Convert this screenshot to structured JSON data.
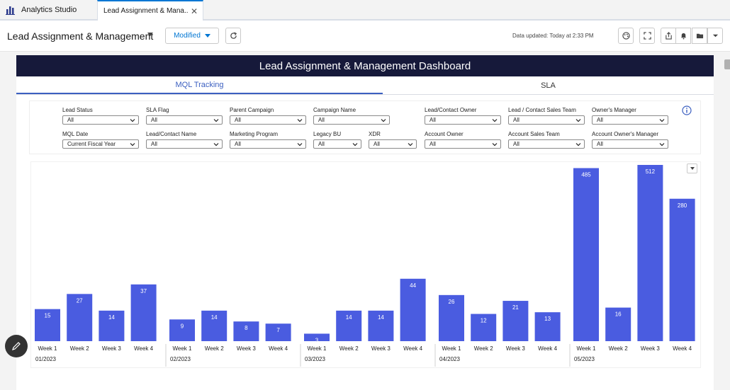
{
  "tabs": {
    "app_name": "Analytics Studio",
    "document_tab": "Lead Assignment & Mana...",
    "close_symbol": "✕"
  },
  "header": {
    "title": "Lead Assignment & Management",
    "modified_label": "Modified",
    "data_updated": "Data updated: Today at 2:33 PM"
  },
  "dashboard": {
    "title": "Lead Assignment & Management Dashboard",
    "subtabs": [
      "MQL Tracking",
      "SLA"
    ],
    "accent_color": "#3b5fc0",
    "title_bar_color": "#16193a"
  },
  "filters": [
    {
      "label": "Lead Status",
      "value": "All"
    },
    {
      "label": "SLA Flag",
      "value": "All"
    },
    {
      "label": "Parent Campaign",
      "value": "All"
    },
    {
      "label": "Campaign Name",
      "value": "All"
    },
    {
      "label": "Lead/Contact Owner",
      "value": "All"
    },
    {
      "label": "Lead / Contact Sales Team",
      "value": "All"
    },
    {
      "label": "Owner's Manager",
      "value": "All"
    },
    {
      "label": "MQL Date",
      "value": "Current Fiscal Year"
    },
    {
      "label": "Lead/Contact Name",
      "value": "All"
    },
    {
      "label": "Marketing Program",
      "value": "All"
    },
    {
      "label": "Legacy BU",
      "value": "All"
    },
    {
      "label": "XDR",
      "value": "All"
    },
    {
      "label": "Account Owner",
      "value": "All"
    },
    {
      "label": "Account Sales Team",
      "value": "All"
    },
    {
      "label": "Account Owner's Manager",
      "value": "All"
    }
  ],
  "chart_data": {
    "type": "bar",
    "bar_color": "#4a5ce0",
    "groups": [
      {
        "label": "01/2023",
        "categories": [
          "Week 1",
          "Week 2",
          "Week 3",
          "Week 4"
        ],
        "values": [
          15,
          27,
          14,
          37
        ]
      },
      {
        "label": "02/2023",
        "categories": [
          "Week 1",
          "Week 2",
          "Week 3",
          "Week 4"
        ],
        "values": [
          9,
          14,
          8,
          7
        ]
      },
      {
        "label": "03/2023",
        "categories": [
          "Week 1",
          "Week 2",
          "Week 3",
          "Week 4"
        ],
        "values": [
          3,
          14,
          14,
          44
        ]
      },
      {
        "label": "04/2023",
        "categories": [
          "Week 1",
          "Week 2",
          "Week 3",
          "Week 4"
        ],
        "values": [
          26,
          12,
          21,
          13
        ]
      },
      {
        "label": "05/2023",
        "categories": [
          "Week 1",
          "Week 2",
          "Week 3",
          "Week 4"
        ],
        "values": [
          485,
          16,
          512,
          280
        ]
      }
    ],
    "scale": "symlog"
  }
}
